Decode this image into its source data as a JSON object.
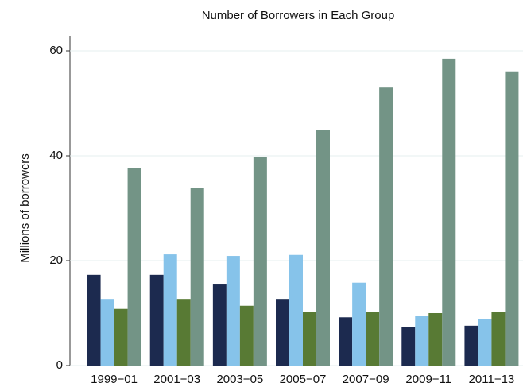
{
  "chart_data": {
    "type": "bar",
    "title": "Number of Borrowers in Each Group",
    "y_label": "Millions of borrowers",
    "categories": [
      "1999−01",
      "2001−03",
      "2003−05",
      "2005−07",
      "2007−09",
      "2009−11",
      "2011−13"
    ],
    "series": [
      {
        "color": "#1c2a4f",
        "values": [
          17.3,
          17.3,
          15.6,
          12.7,
          9.2,
          7.4,
          7.6
        ]
      },
      {
        "color": "#86c3ea",
        "values": [
          12.7,
          21.2,
          20.9,
          21.1,
          15.8,
          9.4,
          8.9
        ]
      },
      {
        "color": "#587a34",
        "values": [
          10.8,
          12.7,
          11.4,
          10.3,
          10.2,
          10.0,
          10.3
        ]
      },
      {
        "color": "#739486",
        "values": [
          37.7,
          33.8,
          39.8,
          45.0,
          53.0,
          58.5,
          56.1
        ]
      }
    ],
    "ylim": [
      0,
      60
    ],
    "yticks": [
      0,
      20,
      40,
      60
    ],
    "grid": true
  }
}
